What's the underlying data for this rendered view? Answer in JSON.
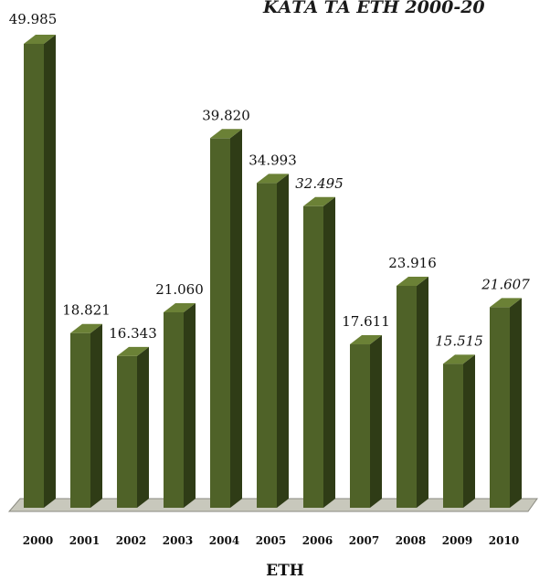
{
  "chart_data": {
    "type": "bar",
    "title": "ΚΑΤΑ ΤΑ ΕΤΗ 2000-20",
    "xlabel": "ΕΤΗ",
    "ylabel": "",
    "categories": [
      "2000",
      "2001",
      "2002",
      "2003",
      "2004",
      "2005",
      "2006",
      "2007",
      "2008",
      "2009",
      "2010"
    ],
    "values": [
      49985,
      18821,
      16343,
      21060,
      39820,
      34993,
      32495,
      17611,
      23916,
      15515,
      21607
    ],
    "value_labels": [
      "49.985",
      "18.821",
      "16.343",
      "21.060",
      "39.820",
      "34.993",
      "32.495",
      "17.611",
      "23.916",
      "15.515",
      "21.607"
    ],
    "italic_labels": [
      false,
      false,
      false,
      false,
      false,
      false,
      true,
      false,
      false,
      true,
      true
    ],
    "ylim": [
      0,
      52000
    ],
    "grid": false,
    "legend": "none",
    "colors": {
      "bar_front": "#4f6228",
      "bar_side": "#2f3c16",
      "bar_top": "#6b8136",
      "floor": "#c8c8bc",
      "floor_edge": "#8a8a80"
    }
  }
}
